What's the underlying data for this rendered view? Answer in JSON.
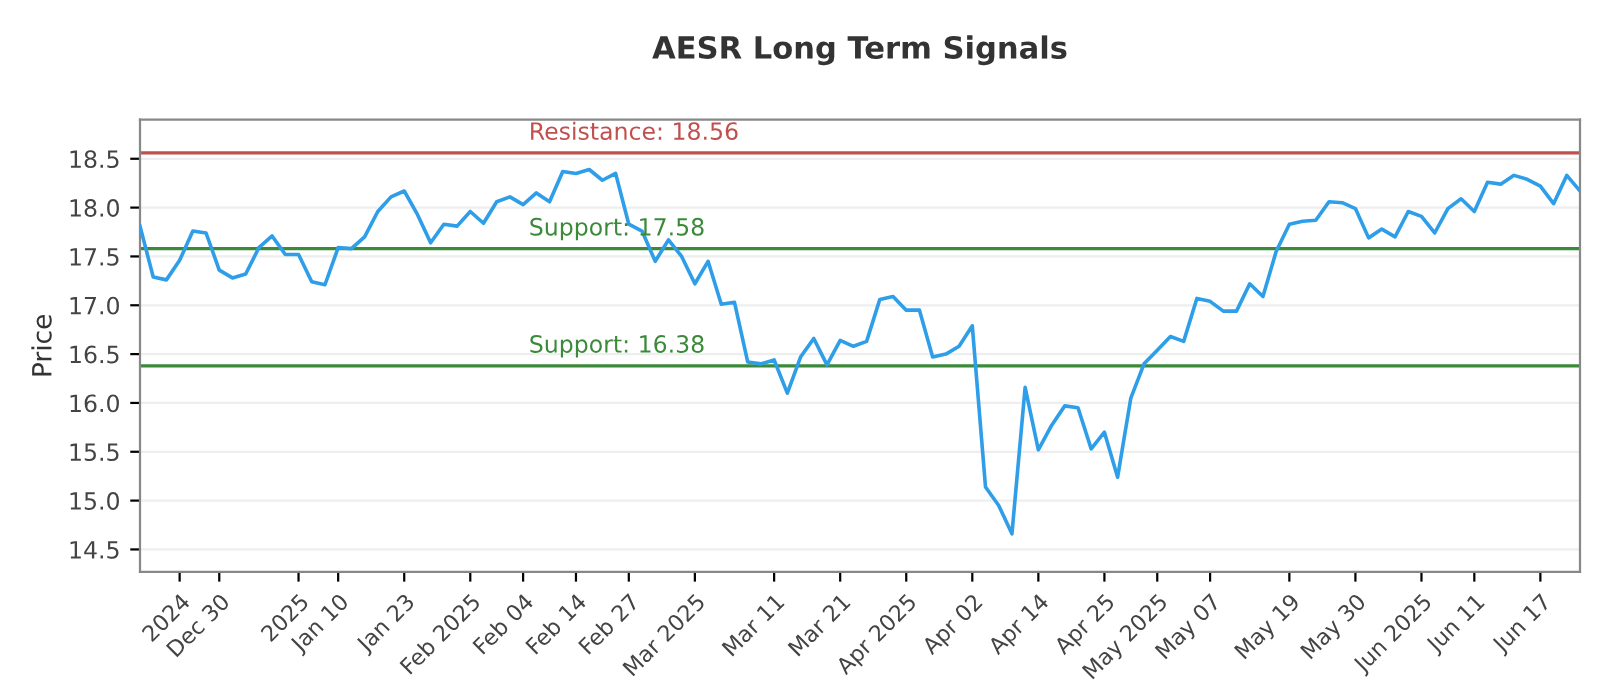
{
  "chart_data": {
    "type": "line",
    "title": "AESR Long Term Signals",
    "ylabel": "Price",
    "categories": [
      null,
      null,
      null,
      "2024",
      null,
      null,
      "Dec 30",
      null,
      null,
      null,
      null,
      null,
      "2025",
      null,
      null,
      "Jan 10",
      null,
      null,
      null,
      null,
      "Jan 23",
      null,
      null,
      null,
      null,
      "Feb 2025",
      null,
      null,
      null,
      "Feb 04",
      null,
      null,
      null,
      "Feb 14",
      null,
      null,
      null,
      "Feb 27",
      null,
      null,
      null,
      null,
      "Mar 2025",
      null,
      null,
      null,
      null,
      null,
      "Mar 11",
      null,
      null,
      null,
      null,
      "Mar 21",
      null,
      null,
      null,
      null,
      "Apr 2025",
      null,
      null,
      null,
      null,
      "Apr 02",
      null,
      null,
      null,
      null,
      "Apr 14",
      null,
      null,
      null,
      null,
      "Apr 25",
      null,
      null,
      null,
      "May 2025",
      null,
      null,
      null,
      "May 07",
      null,
      null,
      null,
      null,
      null,
      "May 19",
      null,
      null,
      null,
      null,
      "May 30",
      null,
      null,
      null,
      null,
      "Jun 2025",
      null,
      null,
      null,
      "Jun 11",
      null,
      null,
      null,
      null,
      "Jun 17",
      null,
      null,
      null
    ],
    "series": [
      {
        "color": "#2f9ee8",
        "values": [
          17.81,
          17.29,
          17.26,
          17.46,
          17.76,
          17.74,
          17.36,
          17.28,
          17.32,
          17.59,
          17.71,
          17.52,
          17.52,
          17.24,
          17.21,
          17.59,
          17.58,
          17.7,
          17.96,
          18.11,
          18.17,
          17.93,
          17.64,
          17.83,
          17.81,
          17.96,
          17.84,
          18.06,
          18.11,
          18.03,
          18.15,
          18.06,
          18.37,
          18.35,
          18.39,
          18.28,
          18.35,
          17.83,
          17.76,
          17.45,
          17.67,
          17.5,
          17.22,
          17.45,
          17.01,
          17.03,
          16.42,
          16.4,
          16.44,
          16.1,
          16.47,
          16.66,
          16.39,
          16.64,
          16.58,
          16.63,
          17.06,
          17.09,
          16.95,
          16.95,
          16.47,
          16.5,
          16.58,
          16.79,
          15.14,
          14.95,
          14.66,
          16.16,
          15.52,
          15.77,
          15.97,
          15.95,
          15.53,
          15.7,
          15.24,
          16.05,
          16.4,
          16.54,
          16.68,
          16.63,
          17.07,
          17.04,
          16.94,
          16.94,
          17.22,
          17.09,
          17.55,
          17.83,
          17.86,
          17.87,
          18.06,
          18.05,
          17.99,
          17.69,
          17.78,
          17.7,
          17.96,
          17.91,
          17.74,
          17.99,
          18.09,
          17.96,
          18.26,
          18.24,
          18.33,
          18.29,
          18.22,
          18.04,
          18.33,
          18.17
        ]
      }
    ],
    "ylim": [
      14.27,
      18.9
    ],
    "yticks": [
      14.5,
      {
        "value": 15,
        "label": "15.0"
      },
      15.5,
      {
        "value": 16,
        "label": "16.0"
      },
      16.5,
      {
        "value": 17,
        "label": "17.0"
      },
      17.5,
      {
        "value": 18,
        "label": "18.0"
      },
      18.5
    ],
    "grid": "y",
    "marker": "none",
    "line_style": "solid",
    "ref_lines": [
      {
        "axis": "y",
        "value": 18.56,
        "label": "Resistance: 18.56",
        "color": "#c0504d"
      },
      {
        "axis": "y",
        "value": 17.58,
        "label": "Support: 17.58",
        "color": "#3a8a3a"
      },
      {
        "axis": "y",
        "value": 16.38,
        "label": "Support: 16.38",
        "color": "#3a8a3a"
      }
    ]
  }
}
